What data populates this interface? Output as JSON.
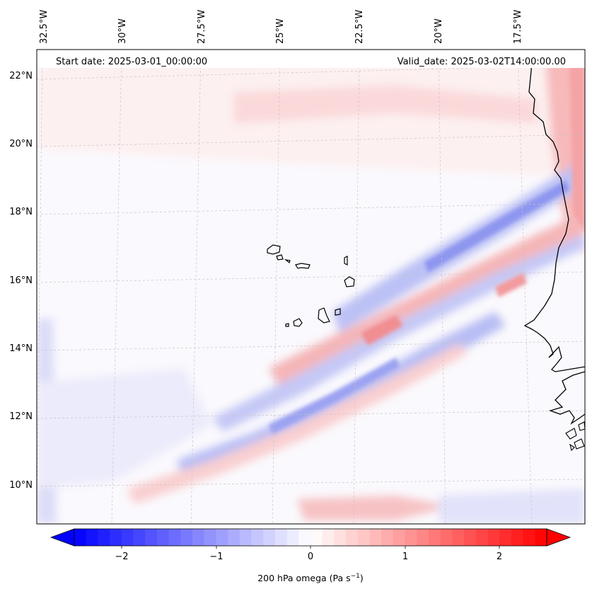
{
  "header": {
    "start_date": "Start date: 2025-03-01_00:00:00",
    "valid_date": "Valid_date: 2025-03-02T14:00:00.00"
  },
  "axes": {
    "lon_ticks": [
      "32.5°W",
      "30°W",
      "27.5°W",
      "25°W",
      "22.5°W",
      "20°W",
      "17.5°W"
    ],
    "lat_ticks": [
      "22°N",
      "20°N",
      "18°N",
      "16°N",
      "14°N",
      "12°N",
      "10°N"
    ]
  },
  "colorbar": {
    "ticks": [
      "−2",
      "−1",
      "0",
      "1",
      "2"
    ],
    "label": "200 hPa omega (Pa s",
    "label_exp": "−1",
    "label_close": ")",
    "vmin": -2.6,
    "vmax": 2.6,
    "low_color": "#0000ff",
    "mid_color": "#ffffff",
    "high_color": "#ff0000"
  },
  "chart_data": {
    "type": "heatmap",
    "variable": "200 hPa omega",
    "units": "Pa s^-1",
    "lon_range": [
      -33,
      -15.8
    ],
    "lat_range": [
      8.8,
      22.8
    ],
    "features": [
      {
        "name": "rising-band-north",
        "sign": "negative",
        "lon_start": -24,
        "lat_start": 13.8,
        "lon_end": -15.8,
        "lat_end": 18.5,
        "intensity": -0.5
      },
      {
        "name": "sinking-band-central",
        "sign": "positive",
        "lon_start": -25,
        "lat_start": 12.8,
        "lon_end": -15.8,
        "lat_end": 17.5,
        "intensity": 0.6
      },
      {
        "name": "rising-band-south",
        "sign": "negative",
        "lon_start": -28.5,
        "lat_start": 10.2,
        "lon_end": -18,
        "lat_end": 15.2,
        "intensity": -0.45
      },
      {
        "name": "sinking-band-northwest",
        "sign": "positive",
        "lon_start": -26,
        "lat_start": 21.8,
        "lon_end": -17,
        "lat_end": 21.2,
        "intensity": 0.25
      },
      {
        "name": "sinking-patch-coast",
        "sign": "positive",
        "lon_start": -17.2,
        "lat_start": 23,
        "lon_end": -15.8,
        "lat_end": 17.5,
        "intensity": 0.5
      },
      {
        "name": "rising-band-west-edge",
        "sign": "negative",
        "lon_start": -33,
        "lat_start": 14,
        "lon_end": -32.2,
        "lat_end": 9,
        "intensity": -0.3
      },
      {
        "name": "sinking-patch-southeast",
        "sign": "positive",
        "lon_start": -23,
        "lat_start": 9.1,
        "lon_end": -19,
        "lat_end": 9.3,
        "intensity": 0.3
      }
    ]
  },
  "islands": [
    {
      "name": "santo-antao"
    },
    {
      "name": "sao-vicente"
    },
    {
      "name": "santa-luzia"
    },
    {
      "name": "sao-nicolau"
    },
    {
      "name": "sal"
    },
    {
      "name": "boa-vista"
    },
    {
      "name": "maio"
    },
    {
      "name": "santiago"
    },
    {
      "name": "fogo"
    },
    {
      "name": "brava"
    }
  ]
}
